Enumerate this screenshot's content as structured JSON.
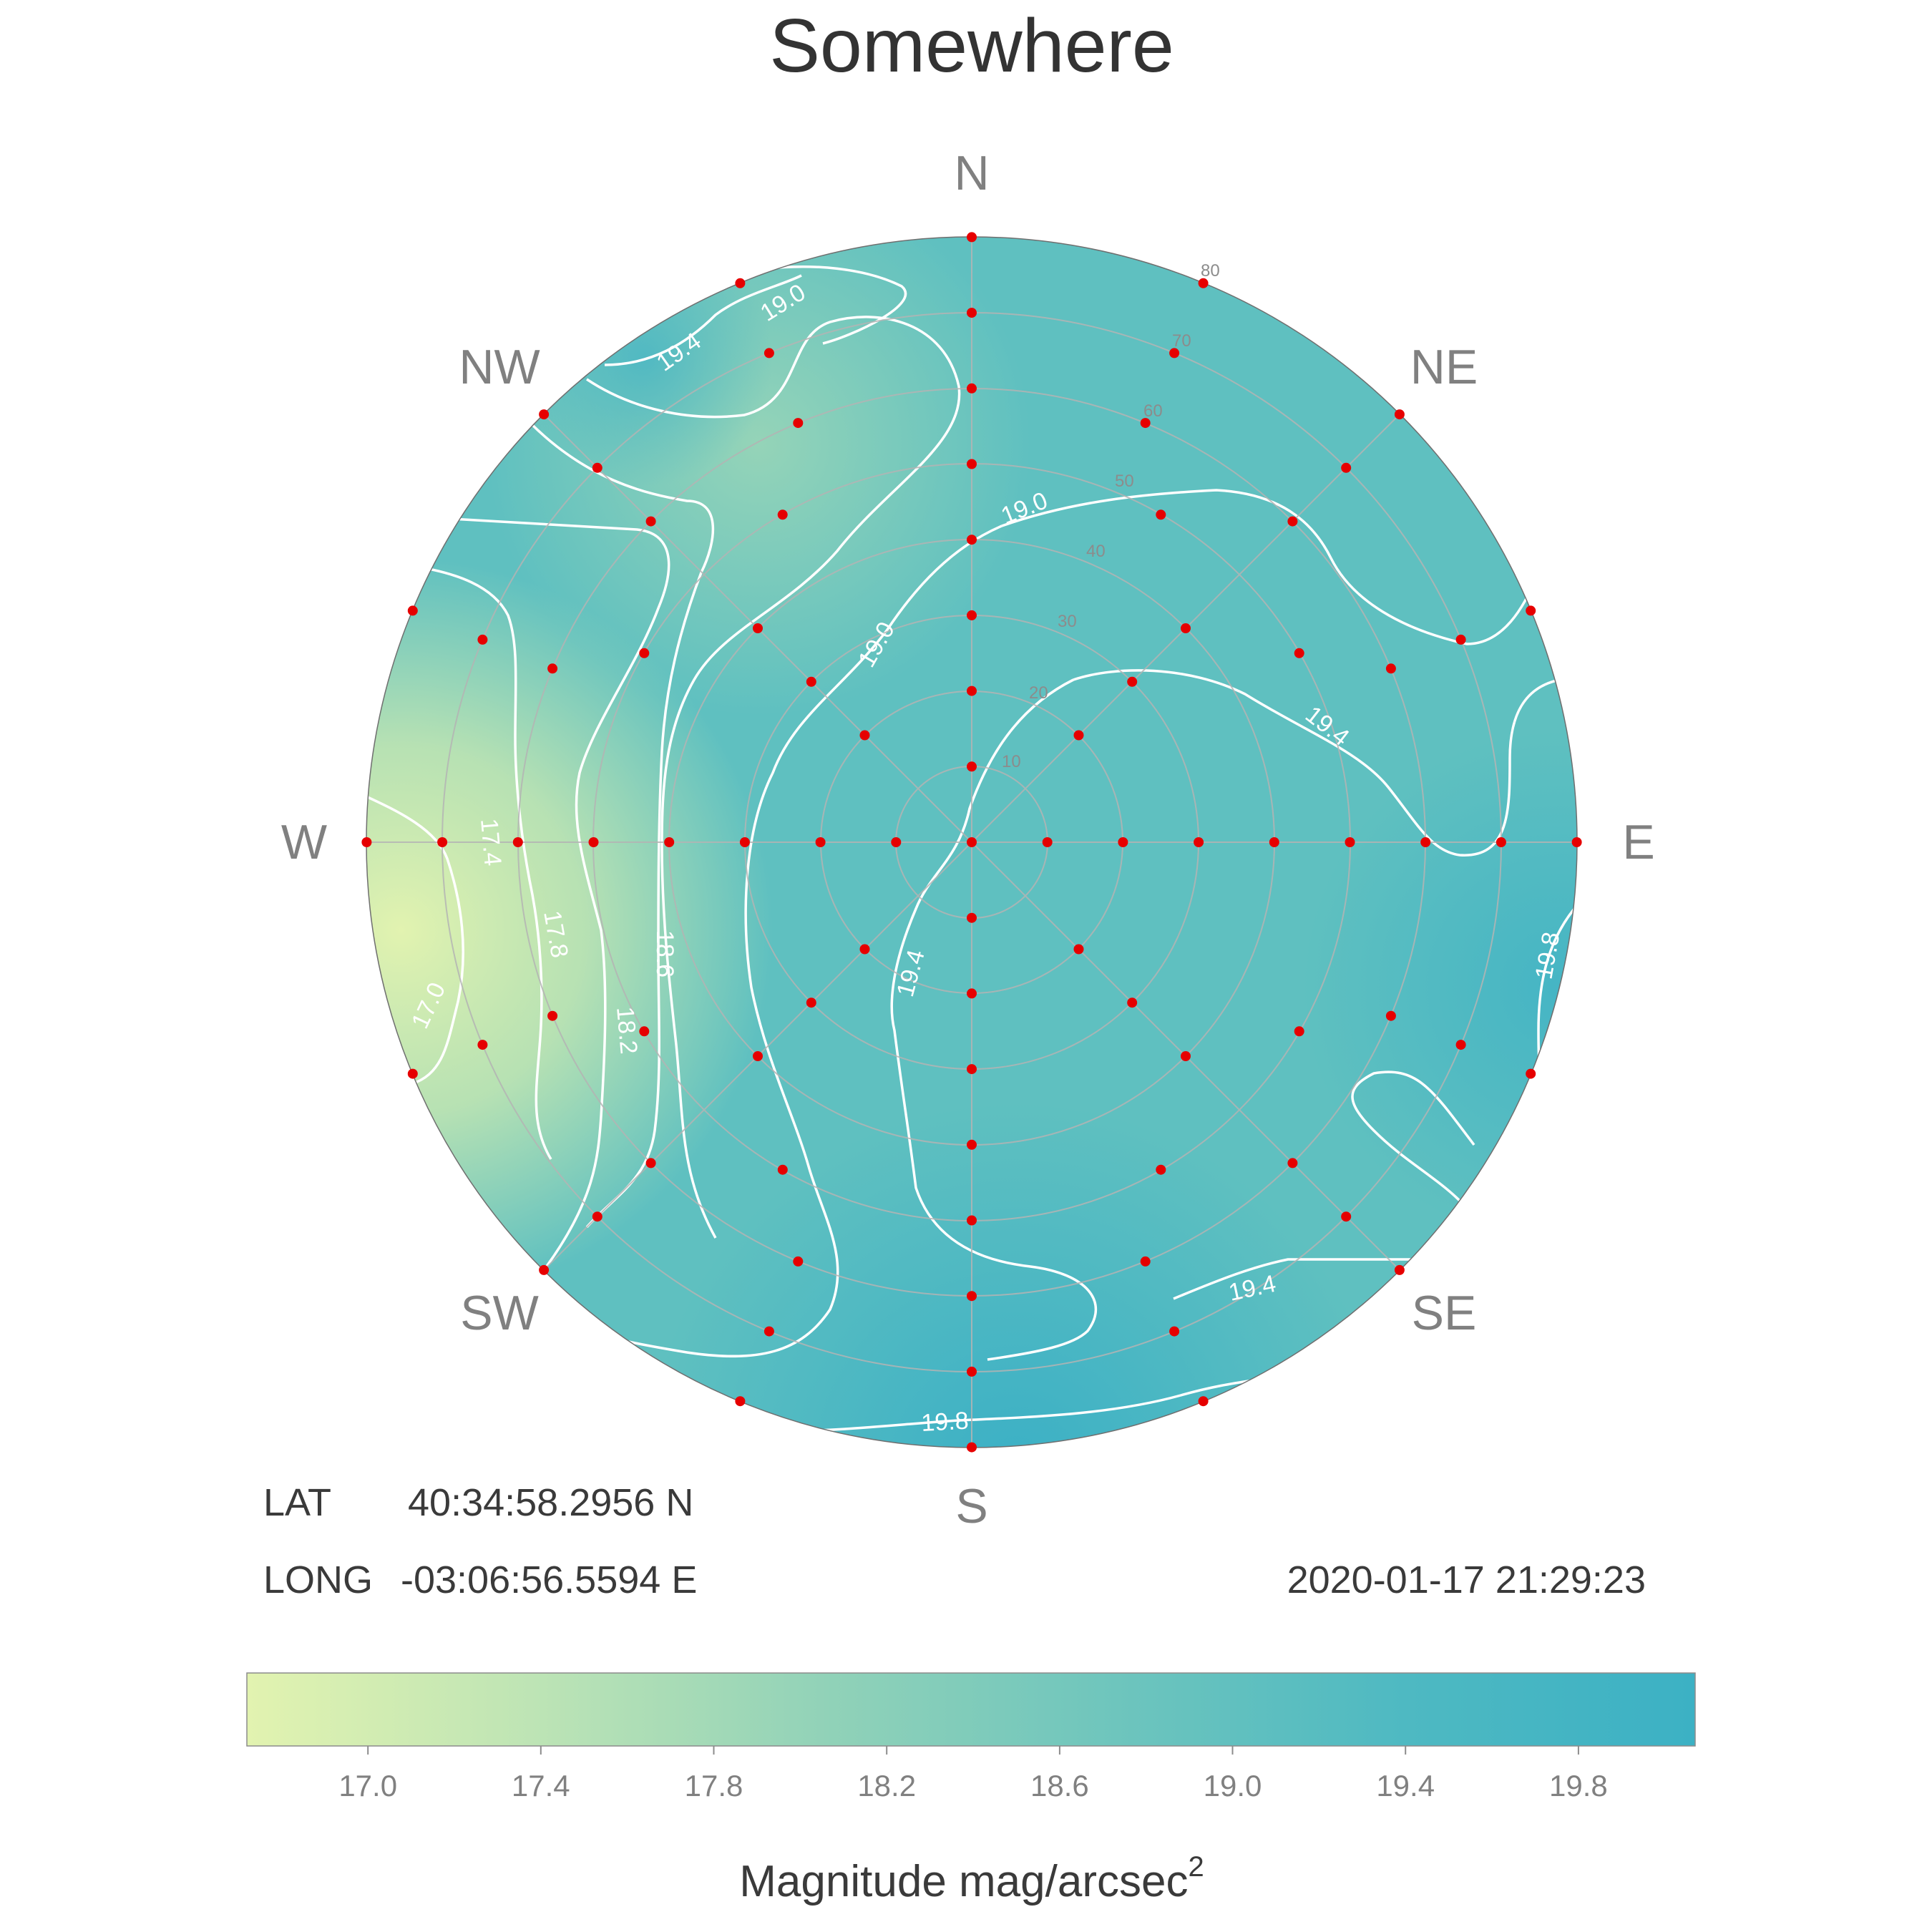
{
  "title": "Somewhere",
  "info": {
    "lat_label": "LAT",
    "lat_value": "40:34:58.2956 N",
    "long_label": "LONG",
    "long_value": "-03:06:56.5594 E",
    "datetime": "2020-01-17 21:29:23"
  },
  "compass": {
    "N": "N",
    "NE": "NE",
    "E": "E",
    "SE": "SE",
    "S": "S",
    "SW": "SW",
    "W": "W",
    "NW": "NW"
  },
  "colorbar": {
    "label_main": "Magnitude mag/arcsec",
    "label_sup": "2",
    "ticks": [
      "17.0",
      "17.4",
      "17.8",
      "18.2",
      "18.6",
      "19.0",
      "19.4",
      "19.8"
    ],
    "tick_values": [
      17.0,
      17.4,
      17.8,
      18.2,
      18.6,
      19.0,
      19.4,
      19.8
    ],
    "range": [
      16.72,
      20.07
    ],
    "colors": [
      "#e2f3b0",
      "#bde4b5",
      "#91d2b8",
      "#6ec5bd",
      "#4eb9c2",
      "#3cb1c4"
    ]
  },
  "colors": {
    "point": "#e60000",
    "contour": "#ffffff",
    "grid": "#b4b4b4"
  },
  "chart_data": {
    "type": "polar-heatmap",
    "projection": "zenith-centered, radius = zenith angle",
    "radial_axis": {
      "unit": "zenith angle (deg)",
      "range": [
        0,
        80
      ],
      "ring_labels": [
        "10",
        "20",
        "30",
        "40",
        "50",
        "60",
        "70",
        "80"
      ]
    },
    "contour_levels": [
      {
        "value": 17.0,
        "label": "17.0"
      },
      {
        "value": 17.4,
        "label": "17.4"
      },
      {
        "value": 17.8,
        "label": "17.8"
      },
      {
        "value": 18.2,
        "label": "18.2"
      },
      {
        "value": 18.6,
        "label": "18.6"
      },
      {
        "value": 19.0,
        "label": "19.0"
      },
      {
        "value": 19.4,
        "label": "19.4"
      },
      {
        "value": 19.8,
        "label": "19.8"
      }
    ],
    "estimated_regions": [
      {
        "direction": "W",
        "magnitude": 16.9
      },
      {
        "direction": "NW",
        "magnitude": 18.8
      },
      {
        "direction": "N",
        "magnitude": 19.1
      },
      {
        "direction": "zenith",
        "magnitude": 19.5
      },
      {
        "direction": "E",
        "magnitude": 19.6
      },
      {
        "direction": "S",
        "magnitude": 19.9
      }
    ],
    "sample_points": {
      "zenith_angles": [
        0,
        10,
        20,
        30,
        40,
        50,
        60,
        70,
        80
      ],
      "azimuth_steps": {
        "0": 1,
        "10": 4,
        "20": 8,
        "30": 8,
        "40": 8,
        "50": 12,
        "60": 16,
        "70": 16,
        "80": 16
      }
    }
  }
}
